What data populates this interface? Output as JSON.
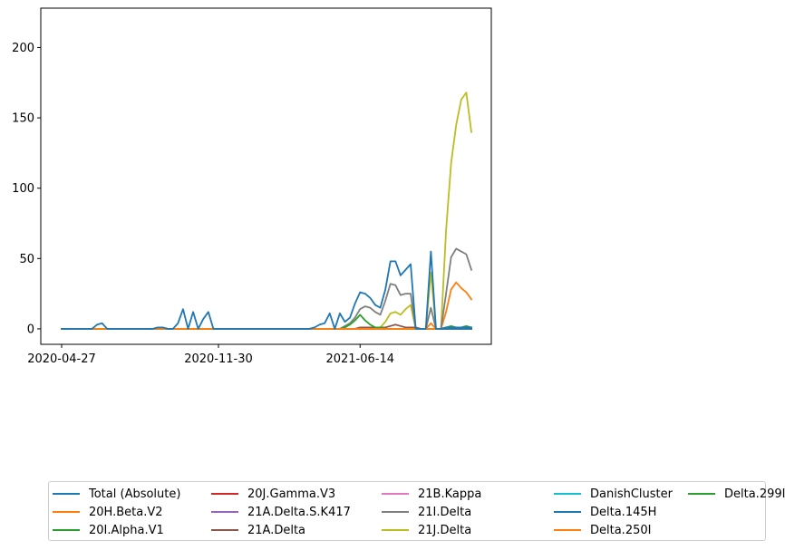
{
  "chart_data": {
    "type": "line",
    "title": "",
    "xlabel": "",
    "ylabel": "",
    "x_tick_labels": [
      "2020-04-27",
      "2020-11-30",
      "2021-06-14"
    ],
    "x_tick_index": [
      0,
      31,
      59
    ],
    "y_ticks": [
      0,
      50,
      100,
      150,
      200
    ],
    "ylim": [
      -11,
      228
    ],
    "n_points": 82,
    "grid": false,
    "legend_position": "bottom",
    "series": [
      {
        "name": "Total (Absolute)",
        "color": "#1f77b4",
        "values": [
          0,
          0,
          0,
          0,
          0,
          0,
          0,
          3,
          4,
          0,
          0,
          0,
          0,
          0,
          0,
          0,
          0,
          0,
          0,
          1,
          1,
          0,
          0,
          4,
          14,
          0,
          12,
          0,
          7,
          12,
          0,
          0,
          0,
          0,
          0,
          0,
          0,
          0,
          0,
          0,
          0,
          0,
          0,
          0,
          0,
          0,
          0,
          0,
          0,
          0,
          1,
          3,
          4,
          11,
          0,
          11,
          5,
          8,
          18,
          26,
          25,
          22,
          17,
          15,
          28,
          48,
          48,
          38,
          42,
          46,
          0,
          0,
          0,
          55,
          0,
          0,
          0,
          0,
          0,
          0,
          0,
          0
        ]
      },
      {
        "name": "20H.Beta.V2",
        "color": "#ff7f0e",
        "values": []
      },
      {
        "name": "20I.Alpha.V1",
        "color": "#2ca02c",
        "values": []
      },
      {
        "name": "20J.Gamma.V3",
        "color": "#d62728",
        "values": []
      },
      {
        "name": "21A.Delta.S.K417",
        "color": "#9467bd",
        "values": []
      },
      {
        "name": "21A.Delta",
        "color": "#8c564b",
        "values": []
      },
      {
        "name": "21B.Kappa",
        "color": "#e377c2",
        "values": []
      },
      {
        "name": "21I.Delta",
        "color": "#7f7f7f",
        "values": []
      },
      {
        "name": "21J.Delta",
        "color": "#bcbd22",
        "values": []
      },
      {
        "name": "DanishCluster",
        "color": "#17becf",
        "values": []
      },
      {
        "name": "Delta.145H",
        "color": "#1f77b4",
        "values": []
      },
      {
        "name": "Delta.250I",
        "color": "#ff7f0e",
        "values": []
      },
      {
        "name": "Delta.299I",
        "color": "#2ca02c",
        "values": []
      }
    ]
  }
}
